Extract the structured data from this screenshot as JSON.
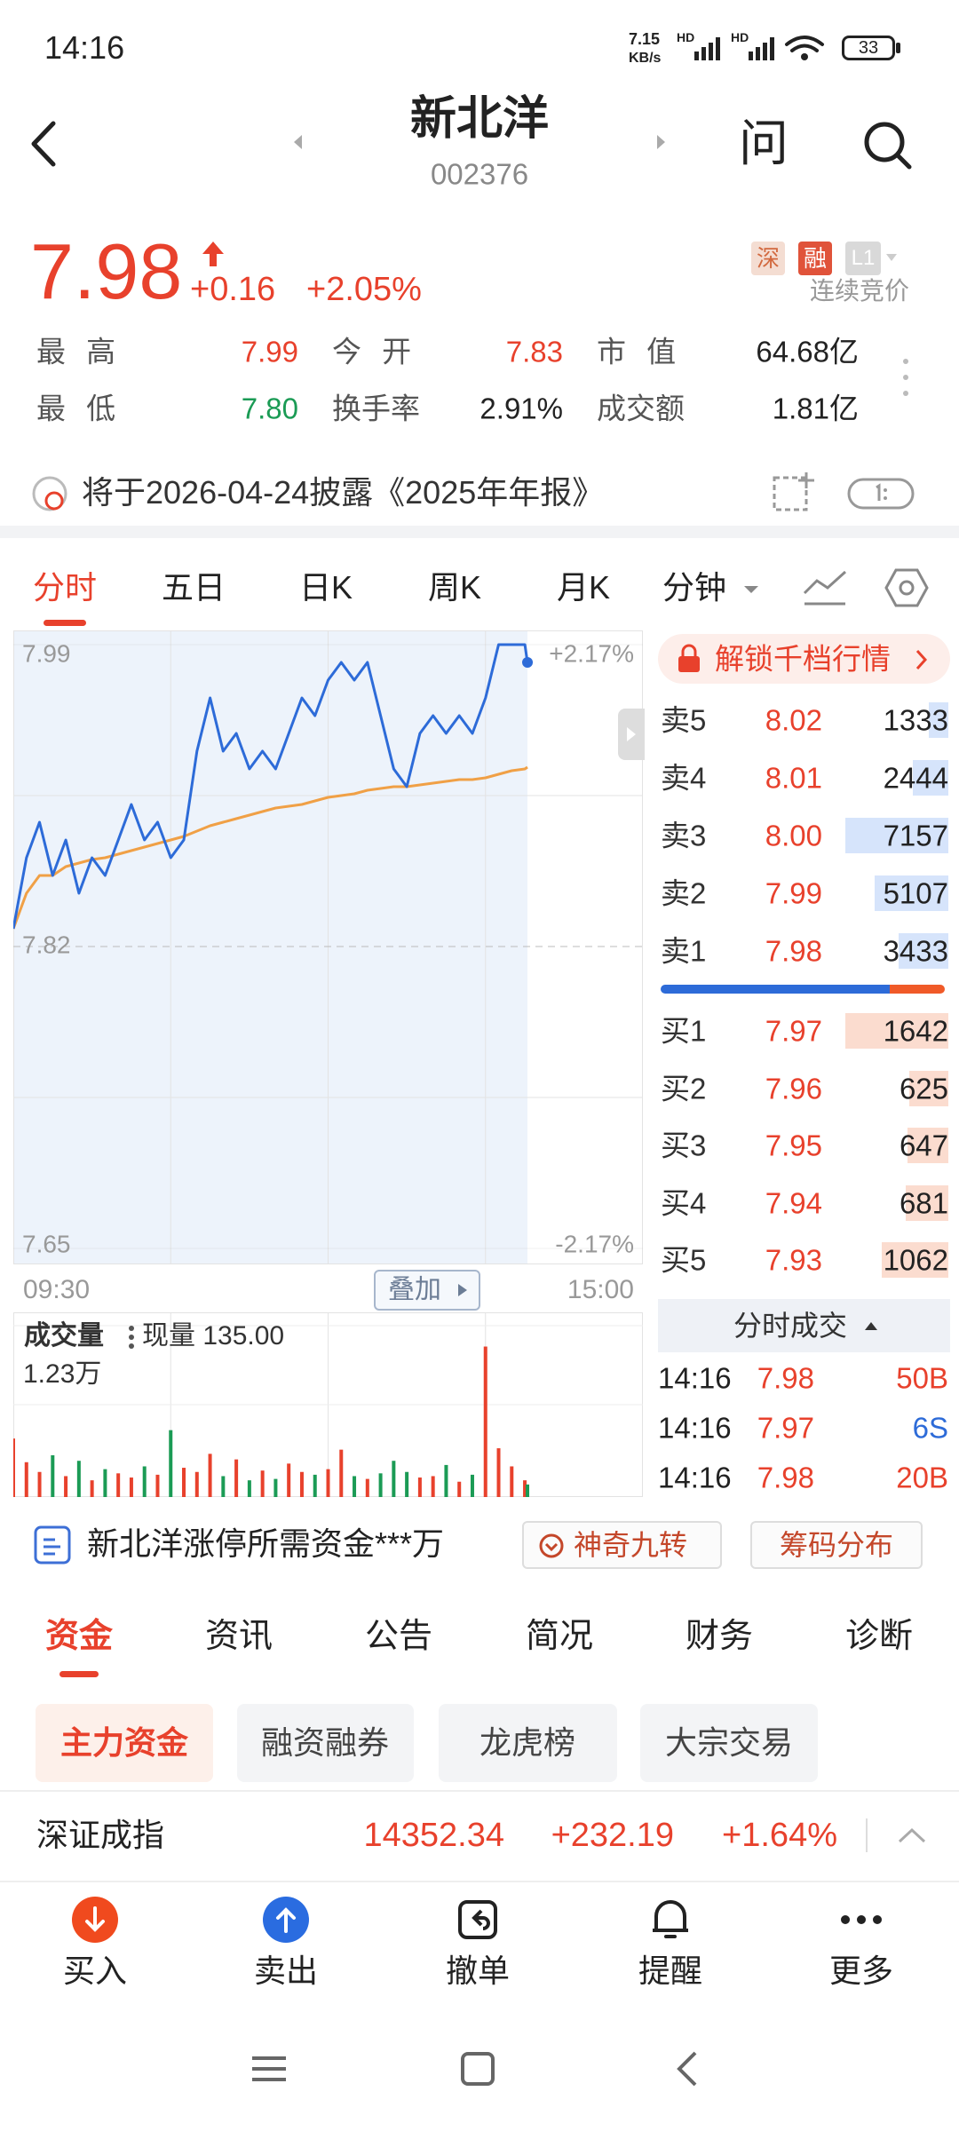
{
  "status_bar": {
    "time": "14:16",
    "net_speed": "7.15",
    "net_unit": "KB/s",
    "hd": "HD",
    "battery": "33"
  },
  "header": {
    "title": "新北洋",
    "code": "002376",
    "ask": "问"
  },
  "quote": {
    "price": "7.98",
    "change": "+0.16",
    "change_pct": "+2.05%",
    "tags": [
      "深",
      "融",
      "L1"
    ],
    "status": "连续竞价",
    "stats": [
      [
        {
          "label": "最 高",
          "value": "7.99"
        },
        {
          "label": "今 开",
          "value": "7.83"
        },
        {
          "label": "市 值",
          "value": "64.68亿"
        }
      ],
      [
        {
          "label": "最 低",
          "value": "7.80"
        },
        {
          "label": "换手率",
          "value": "2.91%"
        },
        {
          "label": "成交额",
          "value": "1.81亿"
        }
      ]
    ]
  },
  "notice": "将于2026-04-24披露《2025年年报》",
  "chart_tabs": [
    "分时",
    "五日",
    "日K",
    "周K",
    "月K",
    "分钟"
  ],
  "chart_controls": {
    "overlay": "叠加"
  },
  "chart_data": [
    {
      "type": "line",
      "x": [
        0,
        5,
        10,
        15,
        20,
        25,
        30,
        35,
        40,
        45,
        50,
        55,
        60,
        65,
        70,
        75,
        80,
        85,
        90,
        95,
        100,
        105,
        110,
        115,
        120,
        125,
        130,
        135,
        140,
        145,
        150,
        155,
        160,
        165,
        170,
        175,
        180,
        185,
        190,
        195,
        196
      ],
      "xlim": [
        0,
        240
      ],
      "xticks": [
        {
          "value": 0,
          "label": "09:30"
        },
        {
          "value": 240,
          "label": "15:00"
        }
      ],
      "series": [
        {
          "color": "#2d6bd8",
          "values": [
            7.83,
            7.87,
            7.89,
            7.86,
            7.88,
            7.85,
            7.87,
            7.86,
            7.88,
            7.9,
            7.88,
            7.89,
            7.87,
            7.88,
            7.93,
            7.96,
            7.93,
            7.94,
            7.92,
            7.93,
            7.92,
            7.94,
            7.96,
            7.95,
            7.97,
            7.98,
            7.97,
            7.98,
            7.95,
            7.92,
            7.91,
            7.94,
            7.95,
            7.94,
            7.95,
            7.94,
            7.96,
            7.99,
            7.99,
            7.99,
            7.98
          ]
        },
        {
          "color": "#f0a046",
          "values": [
            7.83,
            7.85,
            7.86,
            7.86,
            7.865,
            7.867,
            7.869,
            7.87,
            7.872,
            7.874,
            7.876,
            7.878,
            7.88,
            7.882,
            7.885,
            7.888,
            7.89,
            7.892,
            7.894,
            7.896,
            7.898,
            7.899,
            7.9,
            7.902,
            7.904,
            7.905,
            7.906,
            7.908,
            7.909,
            7.91,
            7.91,
            7.911,
            7.912,
            7.913,
            7.914,
            7.914,
            7.915,
            7.917,
            7.919,
            7.92,
            7.921
          ]
        }
      ],
      "ylim": [
        7.65,
        7.99
      ],
      "yticks": [
        7.65,
        7.82,
        7.99
      ],
      "y2lim": [
        -2.17,
        2.17
      ],
      "y2ticks": [
        {
          "value": 2.17,
          "label": "+2.17%"
        },
        {
          "value": -2.17,
          "label": "-2.17%"
        }
      ],
      "grid": true
    },
    {
      "type": "bar",
      "title": "成交量",
      "subtitle": "现量 135.00",
      "x": [
        0,
        5,
        10,
        15,
        20,
        25,
        30,
        35,
        40,
        45,
        50,
        55,
        60,
        65,
        70,
        75,
        80,
        85,
        90,
        95,
        100,
        105,
        110,
        115,
        120,
        125,
        130,
        135,
        140,
        145,
        150,
        155,
        160,
        165,
        170,
        175,
        180,
        185,
        190,
        195,
        196
      ],
      "xlim": [
        0,
        240
      ],
      "values": [
        4200,
        2500,
        1800,
        3000,
        1500,
        2600,
        1200,
        2000,
        1700,
        1400,
        2200,
        1600,
        4800,
        2100,
        1800,
        3100,
        1500,
        2700,
        1200,
        1900,
        1300,
        2400,
        1800,
        1600,
        2000,
        3400,
        1500,
        1300,
        1700,
        2600,
        1800,
        1400,
        1500,
        2300,
        1100,
        1600,
        10800,
        3500,
        2200,
        1200,
        900
      ],
      "colors": [
        "#e8412c",
        "#e8412c",
        "#e8412c",
        "#1b9b55",
        "#e8412c",
        "#1b9b55",
        "#e8412c",
        "#1b9b55",
        "#e8412c",
        "#e8412c",
        "#1b9b55",
        "#e8412c",
        "#1b9b55",
        "#e8412c",
        "#e8412c",
        "#e8412c",
        "#1b9b55",
        "#e8412c",
        "#1b9b55",
        "#e8412c",
        "#1b9b55",
        "#e8412c",
        "#e8412c",
        "#1b9b55",
        "#e8412c",
        "#e8412c",
        "#1b9b55",
        "#e8412c",
        "#1b9b55",
        "#1b9b55",
        "#1b9b55",
        "#e8412c",
        "#e8412c",
        "#1b9b55",
        "#e8412c",
        "#1b9b55",
        "#e8412c",
        "#e8412c",
        "#e8412c",
        "#e8412c",
        "#1b9b55"
      ],
      "ylim": [
        0,
        12300
      ],
      "yticks": [
        {
          "value": 12300,
          "label": "1.23万"
        }
      ]
    }
  ],
  "order_book": {
    "unlock": "解锁千档行情",
    "asks": [
      {
        "label": "卖5",
        "price": "8.02",
        "volume": 1333
      },
      {
        "label": "卖4",
        "price": "8.01",
        "volume": 2444
      },
      {
        "label": "卖3",
        "price": "8.00",
        "volume": 7157
      },
      {
        "label": "卖2",
        "price": "7.99",
        "volume": 5107
      },
      {
        "label": "卖1",
        "price": "7.98",
        "volume": 3433
      }
    ],
    "bids": [
      {
        "label": "买1",
        "price": "7.97",
        "volume": 1642
      },
      {
        "label": "买2",
        "price": "7.96",
        "volume": 625
      },
      {
        "label": "买3",
        "price": "7.95",
        "volume": 647
      },
      {
        "label": "买4",
        "price": "7.94",
        "volume": 681
      },
      {
        "label": "买5",
        "price": "7.93",
        "volume": 1062
      }
    ],
    "trades_title": "分时成交",
    "trades": [
      {
        "time": "14:16",
        "price": "7.98",
        "volume": "50B"
      },
      {
        "time": "14:16",
        "price": "7.97",
        "volume": "6S"
      },
      {
        "time": "14:16",
        "price": "7.98",
        "volume": "20B"
      }
    ]
  },
  "promo": {
    "text": "新北洋涨停所需资金***万",
    "buttons": [
      "神奇九转",
      "筹码分布"
    ]
  },
  "section_tabs": [
    "资金",
    "资讯",
    "公告",
    "简况",
    "财务",
    "诊断"
  ],
  "sub_tabs": [
    "主力资金",
    "融资融券",
    "龙虎榜",
    "大宗交易"
  ],
  "index_bar": {
    "name": "深证成指",
    "value": "14352.34",
    "change": "+232.19",
    "change_pct": "+1.64%"
  },
  "bottom_nav": [
    "买入",
    "卖出",
    "撤单",
    "提醒",
    "更多"
  ]
}
